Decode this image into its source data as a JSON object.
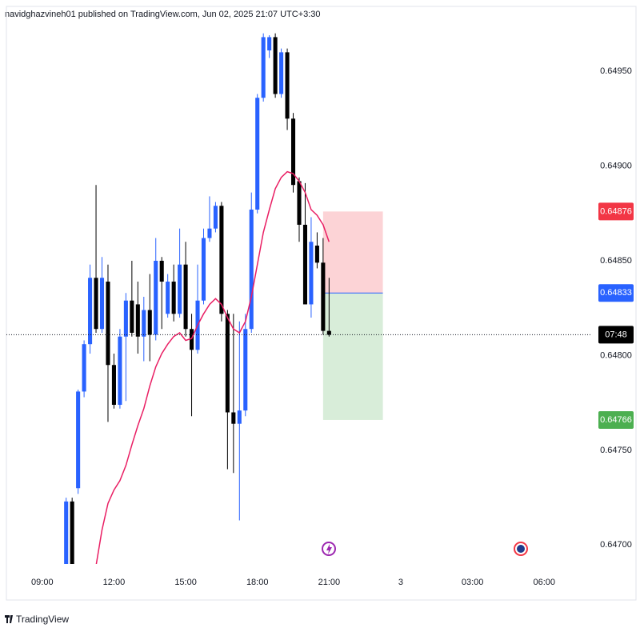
{
  "header": "navidghazvineh01 published on TradingView.com, Jun 02, 2025 21:07 UTC+3:30",
  "footer_logo": "TradingView",
  "chart_data": {
    "type": "candlestick",
    "x": [
      10,
      10.25,
      10.5,
      10.75,
      11,
      11.25,
      11.5,
      11.75,
      12,
      12.25,
      12.5,
      12.75,
      13,
      13.25,
      13.5,
      13.75,
      14,
      14.25,
      14.5,
      14.75,
      15,
      15.25,
      15.5,
      15.75,
      16,
      16.25,
      16.5,
      16.75,
      17,
      17.25,
      17.5,
      17.75,
      18,
      18.25,
      18.5,
      18.75,
      19,
      19.25,
      19.5,
      19.75,
      20,
      20.25,
      20.5,
      20.75,
      21
    ],
    "open": [
      0.64689,
      0.64723,
      0.6473,
      0.64781,
      0.64806,
      0.64841,
      0.64814,
      0.64839,
      0.64795,
      0.64774,
      0.6481,
      0.64829,
      0.64827,
      0.6481,
      0.64824,
      0.64811,
      0.6485,
      0.64822,
      0.64839,
      0.64822,
      0.64848,
      0.64814,
      0.64803,
      0.64829,
      0.64862,
      0.64867,
      0.64879,
      0.64822,
      0.6477,
      0.64764,
      0.64771,
      0.64814,
      0.64877,
      0.64936,
      0.64961,
      0.64968,
      0.64938,
      0.6496,
      0.64925,
      0.64892,
      0.64869,
      0.64827,
      0.64858,
      0.64849,
      0.64813
    ],
    "high": [
      0.64725,
      0.64725,
      0.64782,
      0.64808,
      0.64848,
      0.6489,
      0.64852,
      0.64848,
      0.64801,
      0.64814,
      0.64833,
      0.6485,
      0.64839,
      0.64831,
      0.64843,
      0.64862,
      0.64852,
      0.64843,
      0.64848,
      0.64867,
      0.6486,
      0.64822,
      0.64848,
      0.64867,
      0.64884,
      0.64881,
      0.64881,
      0.64824,
      0.64822,
      0.64818,
      0.64822,
      0.64886,
      0.64938,
      0.6497,
      0.64969,
      0.6497,
      0.64962,
      0.64962,
      0.64928,
      0.64894,
      0.64891,
      0.64873,
      0.64865,
      0.64862,
      0.64841
    ],
    "low": [
      0.64683,
      0.64683,
      0.64727,
      0.64778,
      0.64801,
      0.64812,
      0.64812,
      0.64765,
      0.64772,
      0.64772,
      0.64776,
      0.6481,
      0.64801,
      0.64797,
      0.64797,
      0.64808,
      0.64814,
      0.6482,
      0.64818,
      0.6482,
      0.6481,
      0.64768,
      0.64801,
      0.64827,
      0.6486,
      0.64865,
      0.64818,
      0.6474,
      0.64738,
      0.64713,
      0.64768,
      0.64812,
      0.64875,
      0.64934,
      0.64957,
      0.64936,
      0.64936,
      0.64919,
      0.64886,
      0.6486,
      0.64827,
      0.6482,
      0.64846,
      0.64811,
      0.6481
    ],
    "close": [
      0.64723,
      0.64689,
      0.64781,
      0.64806,
      0.64841,
      0.64814,
      0.64841,
      0.64795,
      0.64774,
      0.6481,
      0.64829,
      0.64812,
      0.6481,
      0.64824,
      0.64811,
      0.6485,
      0.64839,
      0.64839,
      0.64822,
      0.64848,
      0.64814,
      0.64803,
      0.64829,
      0.64862,
      0.64867,
      0.64879,
      0.64822,
      0.6477,
      0.64764,
      0.64771,
      0.64814,
      0.64877,
      0.64936,
      0.64968,
      0.64968,
      0.64938,
      0.6496,
      0.64925,
      0.6489,
      0.64869,
      0.64827,
      0.6486,
      0.64849,
      0.64813,
      0.64811
    ],
    "up_color": "#2962ff",
    "down_color": "#000000",
    "ma": {
      "color": "#e91e63",
      "values": [
        null,
        null,
        null,
        null,
        null,
        0.64689,
        0.64708,
        0.64722,
        0.64729,
        0.64734,
        0.64742,
        0.64753,
        0.64763,
        0.64772,
        0.64784,
        0.64794,
        0.64801,
        0.64806,
        0.6481,
        0.64812,
        0.64808,
        0.64809,
        0.64816,
        0.64822,
        0.64827,
        0.6483,
        0.64827,
        0.6482,
        0.64814,
        0.64812,
        0.64818,
        0.64831,
        0.64848,
        0.64865,
        0.64877,
        0.64888,
        0.64894,
        0.64897,
        0.64896,
        0.64892,
        0.64886,
        0.64877,
        0.64874,
        0.64869,
        0.6486
      ]
    },
    "position": {
      "x": [
        20.75,
        23.25
      ],
      "entry": 0.64833,
      "stop": 0.64876,
      "target": 0.64766,
      "entry_color": "#2962ff",
      "stop_color": "#f23645",
      "target_color": "#4caf50"
    },
    "countdown": "07:48",
    "xlim": [
      7.5,
      32
    ],
    "xticks": [
      {
        "value": 9,
        "label": "09:00"
      },
      {
        "value": 12,
        "label": "12:00"
      },
      {
        "value": 15,
        "label": "15:00"
      },
      {
        "value": 18,
        "label": "18:00"
      },
      {
        "value": 21,
        "label": "21:00"
      },
      {
        "value": 24,
        "label": "3"
      },
      {
        "value": 27,
        "label": "03:00"
      },
      {
        "value": 30,
        "label": "06:00"
      }
    ],
    "ylim": [
      0.6469,
      0.6498
    ],
    "yticks": [
      {
        "value": 0.647,
        "label": "0.64700"
      },
      {
        "value": 0.6475,
        "label": "0.64750"
      },
      {
        "value": 0.648,
        "label": "0.64800"
      },
      {
        "value": 0.6485,
        "label": "0.64850"
      },
      {
        "value": 0.649,
        "label": "0.64900"
      },
      {
        "value": 0.6495,
        "label": "0.64950"
      }
    ]
  }
}
